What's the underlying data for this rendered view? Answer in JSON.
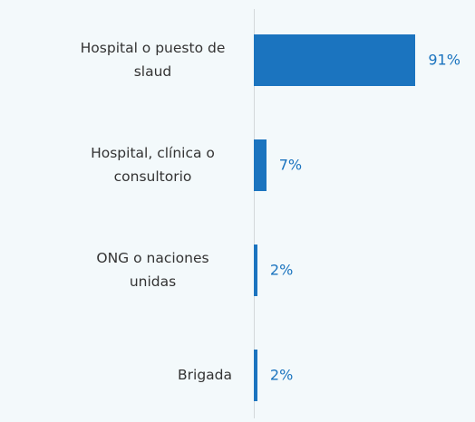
{
  "chart_data": {
    "type": "bar",
    "orientation": "horizontal",
    "categories": [
      "Hospital o puesto de slaud",
      "Hospital, clínica o consultorio",
      "ONG o naciones unidas",
      "Brigada"
    ],
    "values": [
      91,
      7,
      2,
      2
    ],
    "value_labels": [
      "91%",
      "7%",
      "2%",
      "2%"
    ],
    "color": "#1b74bf",
    "xlim": [
      0,
      100
    ]
  }
}
